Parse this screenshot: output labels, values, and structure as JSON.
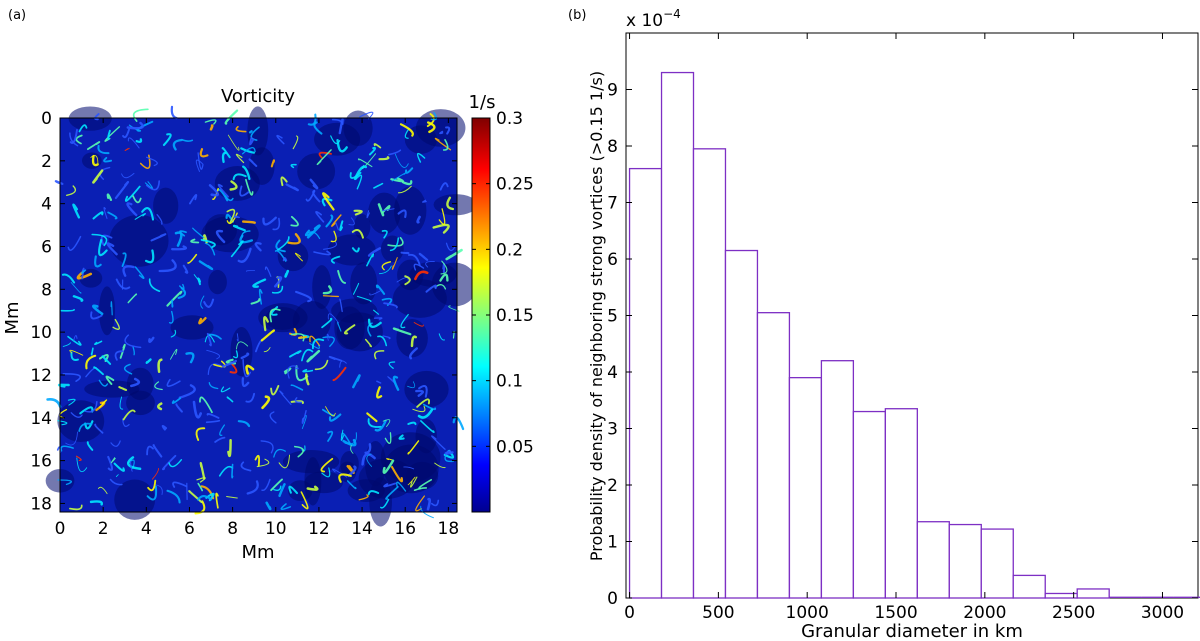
{
  "panels": {
    "left_label": "(a)",
    "right_label": "(b)"
  },
  "chart_data": [
    {
      "type": "heatmap",
      "title": "Vorticity",
      "xlabel": "Mm",
      "ylabel": "Mm",
      "colorbar_unit": "1/s",
      "x_ticks": [
        "0",
        "2",
        "4",
        "6",
        "8",
        "10",
        "12",
        "14",
        "16",
        "18"
      ],
      "y_ticks": [
        "0",
        "2",
        "4",
        "6",
        "8",
        "10",
        "12",
        "14",
        "16",
        "18"
      ],
      "xlim": [
        0,
        18.4
      ],
      "ylim": [
        0,
        18.4
      ],
      "y_inverted": true,
      "colorbar_ticks": [
        "0.05",
        "0.1",
        "0.15",
        "0.2",
        "0.25",
        "0.3"
      ],
      "colorbar_range": [
        0,
        0.3
      ],
      "colormap": "jet",
      "colors": {
        "background": "#0a1fb4",
        "dark": "#000a6e"
      }
    },
    {
      "type": "bar",
      "subtype": "histogram",
      "xlabel": "Granular diameter in km",
      "ylabel": "Probability density of neighboring strong vortices (>0.15 1/s)",
      "y_exponent_label": "x 10",
      "y_exponent_power": "−4",
      "x_ticks": [
        "0",
        "500",
        "1000",
        "1500",
        "2000",
        "2500",
        "3000"
      ],
      "y_ticks": [
        "0",
        "1",
        "2",
        "3",
        "4",
        "5",
        "6",
        "7",
        "8",
        "9"
      ],
      "xlim": [
        -20,
        3200
      ],
      "ylim": [
        0,
        10
      ],
      "bin_width": 180,
      "bin_starts": [
        0,
        180,
        360,
        540,
        720,
        900,
        1080,
        1260,
        1440,
        1620,
        1800,
        1980,
        2160,
        2340,
        2520,
        2700,
        2880,
        3060
      ],
      "values": [
        7.6,
        9.3,
        7.95,
        6.15,
        5.05,
        3.9,
        4.2,
        3.3,
        3.35,
        1.35,
        1.3,
        1.22,
        0.4,
        0.08,
        0.16,
        0,
        0,
        0
      ],
      "colors": {
        "bar_edge": "#7d2fc4",
        "bar_fill": "#ffffff"
      }
    }
  ]
}
